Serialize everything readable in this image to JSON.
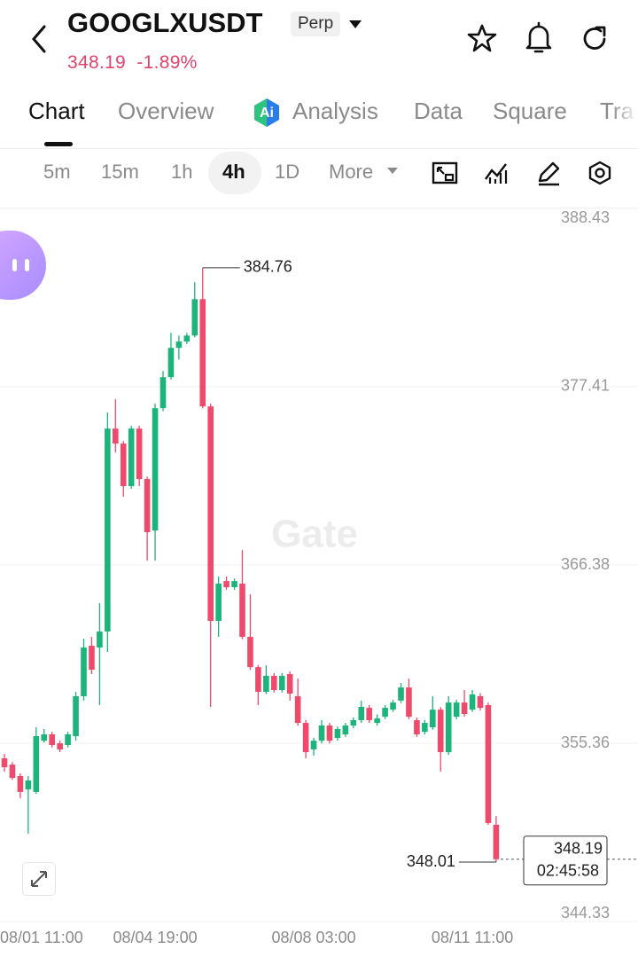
{
  "header": {
    "symbol": "GOOGLXUSDT",
    "badge": "Perp",
    "change": "-1.89%"
  },
  "tabs": [
    "Chart",
    "Overview",
    "Analysis",
    "Data",
    "Square",
    "Tra"
  ],
  "intervals": [
    "5m",
    "15m",
    "1h",
    "4h",
    "1D",
    "More"
  ],
  "chart_data": {
    "type": "candlestick",
    "watermark": "Gate",
    "countdown": "02:45:58",
    "up_color": "#1db47c",
    "down_color": "#ee4a6c",
    "grid": true,
    "categories": [
      "08/01 11:00",
      null,
      null,
      null,
      null,
      null,
      null,
      null,
      null,
      null,
      null,
      null,
      null,
      null,
      null,
      null,
      null,
      null,
      null,
      "08/04 19:00",
      null,
      null,
      null,
      null,
      null,
      null,
      null,
      null,
      null,
      null,
      null,
      null,
      null,
      null,
      null,
      null,
      null,
      null,
      null,
      "08/08 03:00",
      null,
      null,
      null,
      null,
      null,
      null,
      null,
      null,
      null,
      null,
      null,
      null,
      null,
      null,
      null,
      null,
      null,
      null,
      null,
      "08/11 11:00",
      null,
      null,
      null
    ],
    "open": [
      354.43,
      354.04,
      353.33,
      352.51,
      352.35,
      355.52,
      355.91,
      355.36,
      355.25,
      355.8,
      358.27,
      361.39,
      361.28,
      362.27,
      374.82,
      373.89,
      371.26,
      374.82,
      371.7,
      368.52,
      376.08,
      378.0,
      379.81,
      380.2,
      380.57,
      382.82,
      376.19,
      362.93,
      365.39,
      365.01,
      365.23,
      361.94,
      360.07,
      358.54,
      359.53,
      358.65,
      359.64,
      358.27,
      356.62,
      354.98,
      355.52,
      356.46,
      355.69,
      355.91,
      356.46,
      356.79,
      357.55,
      356.62,
      357.0,
      357.44,
      358.0,
      358.81,
      356.79,
      356.07,
      356.35,
      357.44,
      354.81,
      357.0,
      357.88,
      357.44,
      358.27,
      357.72,
      350.32
    ],
    "high": [
      354.7,
      354.2,
      353.5,
      353.33,
      356.35,
      356.24,
      356.07,
      355.52,
      356.07,
      358.54,
      361.83,
      361.94,
      364.02,
      375.81,
      376.63,
      374.05,
      374.99,
      374.99,
      371.85,
      376.36,
      378.38,
      380.74,
      380.57,
      380.74,
      383.87,
      384.76,
      376.35,
      365.67,
      365.67,
      365.55,
      367.31,
      364.57,
      360.2,
      360.18,
      359.7,
      359.7,
      359.8,
      359.36,
      356.8,
      355.7,
      356.79,
      356.62,
      356.4,
      356.62,
      356.95,
      358.0,
      357.72,
      357.15,
      357.72,
      358.05,
      359.09,
      359.36,
      356.95,
      356.8,
      358.27,
      357.6,
      358.27,
      358.05,
      358.65,
      358.65,
      358.45,
      357.88,
      350.86
    ],
    "low": [
      353.61,
      353.1,
      351.96,
      349.77,
      352.24,
      355.4,
      355.1,
      354.81,
      355.1,
      355.52,
      358.0,
      359.64,
      357.72,
      361.01,
      373.34,
      370.6,
      371.1,
      371.26,
      366.65,
      366.65,
      375.9,
      377.85,
      379.09,
      380.05,
      380.46,
      376.08,
      357.61,
      361.94,
      364.85,
      364.85,
      361.8,
      359.9,
      357.72,
      358.4,
      358.5,
      358.5,
      358.0,
      356.45,
      354.43,
      354.59,
      355.35,
      355.35,
      355.52,
      355.75,
      356.3,
      356.62,
      356.62,
      356.45,
      356.85,
      357.3,
      357.85,
      356.85,
      355.75,
      355.9,
      356.2,
      353.61,
      354.65,
      356.85,
      357.0,
      357.3,
      357.4,
      350.32,
      348.01
    ],
    "close": [
      353.88,
      353.22,
      352.35,
      353.06,
      355.8,
      355.91,
      355.25,
      354.98,
      355.91,
      358.27,
      361.28,
      359.91,
      362.27,
      374.82,
      373.89,
      371.26,
      374.82,
      371.7,
      368.41,
      376.08,
      378.0,
      379.81,
      380.2,
      380.57,
      382.82,
      376.19,
      362.93,
      365.23,
      365.01,
      365.39,
      361.94,
      360.07,
      358.54,
      359.53,
      358.65,
      359.53,
      358.43,
      356.62,
      354.81,
      355.52,
      356.46,
      355.52,
      356.24,
      356.46,
      356.79,
      357.61,
      356.79,
      356.9,
      357.55,
      357.88,
      358.81,
      357.0,
      355.91,
      356.62,
      357.44,
      354.81,
      357.88,
      357.88,
      357.17,
      358.38,
      357.55,
      350.43,
      348.19
    ],
    "ylim": [
      344.01,
      388.43
    ],
    "yticks": [
      388.43,
      377.41,
      366.38,
      355.36,
      344.33
    ]
  }
}
